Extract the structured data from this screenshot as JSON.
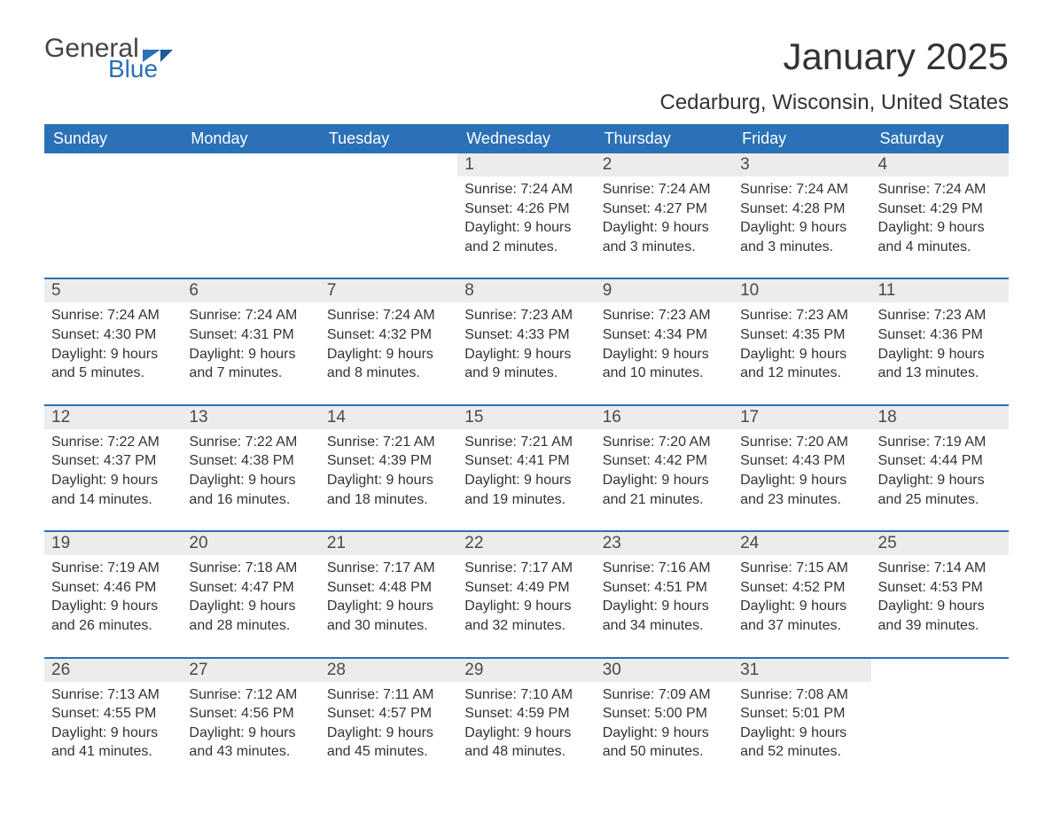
{
  "logo": {
    "word1": "General",
    "word2": "Blue",
    "accent_color": "#2a71b8"
  },
  "title": "January 2025",
  "location": "Cedarburg, Wisconsin, United States",
  "colors": {
    "header_bg": "#2a71b8",
    "header_text": "#ffffff",
    "daynum_bg": "#ececec",
    "text": "#333333",
    "separator": "#2a71b8"
  },
  "day_labels": [
    "Sunday",
    "Monday",
    "Tuesday",
    "Wednesday",
    "Thursday",
    "Friday",
    "Saturday"
  ],
  "weeks": [
    [
      null,
      null,
      null,
      {
        "n": "1",
        "sr": "Sunrise: 7:24 AM",
        "ss": "Sunset: 4:26 PM",
        "d1": "Daylight: 9 hours",
        "d2": "and 2 minutes."
      },
      {
        "n": "2",
        "sr": "Sunrise: 7:24 AM",
        "ss": "Sunset: 4:27 PM",
        "d1": "Daylight: 9 hours",
        "d2": "and 3 minutes."
      },
      {
        "n": "3",
        "sr": "Sunrise: 7:24 AM",
        "ss": "Sunset: 4:28 PM",
        "d1": "Daylight: 9 hours",
        "d2": "and 3 minutes."
      },
      {
        "n": "4",
        "sr": "Sunrise: 7:24 AM",
        "ss": "Sunset: 4:29 PM",
        "d1": "Daylight: 9 hours",
        "d2": "and 4 minutes."
      }
    ],
    [
      {
        "n": "5",
        "sr": "Sunrise: 7:24 AM",
        "ss": "Sunset: 4:30 PM",
        "d1": "Daylight: 9 hours",
        "d2": "and 5 minutes."
      },
      {
        "n": "6",
        "sr": "Sunrise: 7:24 AM",
        "ss": "Sunset: 4:31 PM",
        "d1": "Daylight: 9 hours",
        "d2": "and 7 minutes."
      },
      {
        "n": "7",
        "sr": "Sunrise: 7:24 AM",
        "ss": "Sunset: 4:32 PM",
        "d1": "Daylight: 9 hours",
        "d2": "and 8 minutes."
      },
      {
        "n": "8",
        "sr": "Sunrise: 7:23 AM",
        "ss": "Sunset: 4:33 PM",
        "d1": "Daylight: 9 hours",
        "d2": "and 9 minutes."
      },
      {
        "n": "9",
        "sr": "Sunrise: 7:23 AM",
        "ss": "Sunset: 4:34 PM",
        "d1": "Daylight: 9 hours",
        "d2": "and 10 minutes."
      },
      {
        "n": "10",
        "sr": "Sunrise: 7:23 AM",
        "ss": "Sunset: 4:35 PM",
        "d1": "Daylight: 9 hours",
        "d2": "and 12 minutes."
      },
      {
        "n": "11",
        "sr": "Sunrise: 7:23 AM",
        "ss": "Sunset: 4:36 PM",
        "d1": "Daylight: 9 hours",
        "d2": "and 13 minutes."
      }
    ],
    [
      {
        "n": "12",
        "sr": "Sunrise: 7:22 AM",
        "ss": "Sunset: 4:37 PM",
        "d1": "Daylight: 9 hours",
        "d2": "and 14 minutes."
      },
      {
        "n": "13",
        "sr": "Sunrise: 7:22 AM",
        "ss": "Sunset: 4:38 PM",
        "d1": "Daylight: 9 hours",
        "d2": "and 16 minutes."
      },
      {
        "n": "14",
        "sr": "Sunrise: 7:21 AM",
        "ss": "Sunset: 4:39 PM",
        "d1": "Daylight: 9 hours",
        "d2": "and 18 minutes."
      },
      {
        "n": "15",
        "sr": "Sunrise: 7:21 AM",
        "ss": "Sunset: 4:41 PM",
        "d1": "Daylight: 9 hours",
        "d2": "and 19 minutes."
      },
      {
        "n": "16",
        "sr": "Sunrise: 7:20 AM",
        "ss": "Sunset: 4:42 PM",
        "d1": "Daylight: 9 hours",
        "d2": "and 21 minutes."
      },
      {
        "n": "17",
        "sr": "Sunrise: 7:20 AM",
        "ss": "Sunset: 4:43 PM",
        "d1": "Daylight: 9 hours",
        "d2": "and 23 minutes."
      },
      {
        "n": "18",
        "sr": "Sunrise: 7:19 AM",
        "ss": "Sunset: 4:44 PM",
        "d1": "Daylight: 9 hours",
        "d2": "and 25 minutes."
      }
    ],
    [
      {
        "n": "19",
        "sr": "Sunrise: 7:19 AM",
        "ss": "Sunset: 4:46 PM",
        "d1": "Daylight: 9 hours",
        "d2": "and 26 minutes."
      },
      {
        "n": "20",
        "sr": "Sunrise: 7:18 AM",
        "ss": "Sunset: 4:47 PM",
        "d1": "Daylight: 9 hours",
        "d2": "and 28 minutes."
      },
      {
        "n": "21",
        "sr": "Sunrise: 7:17 AM",
        "ss": "Sunset: 4:48 PM",
        "d1": "Daylight: 9 hours",
        "d2": "and 30 minutes."
      },
      {
        "n": "22",
        "sr": "Sunrise: 7:17 AM",
        "ss": "Sunset: 4:49 PM",
        "d1": "Daylight: 9 hours",
        "d2": "and 32 minutes."
      },
      {
        "n": "23",
        "sr": "Sunrise: 7:16 AM",
        "ss": "Sunset: 4:51 PM",
        "d1": "Daylight: 9 hours",
        "d2": "and 34 minutes."
      },
      {
        "n": "24",
        "sr": "Sunrise: 7:15 AM",
        "ss": "Sunset: 4:52 PM",
        "d1": "Daylight: 9 hours",
        "d2": "and 37 minutes."
      },
      {
        "n": "25",
        "sr": "Sunrise: 7:14 AM",
        "ss": "Sunset: 4:53 PM",
        "d1": "Daylight: 9 hours",
        "d2": "and 39 minutes."
      }
    ],
    [
      {
        "n": "26",
        "sr": "Sunrise: 7:13 AM",
        "ss": "Sunset: 4:55 PM",
        "d1": "Daylight: 9 hours",
        "d2": "and 41 minutes."
      },
      {
        "n": "27",
        "sr": "Sunrise: 7:12 AM",
        "ss": "Sunset: 4:56 PM",
        "d1": "Daylight: 9 hours",
        "d2": "and 43 minutes."
      },
      {
        "n": "28",
        "sr": "Sunrise: 7:11 AM",
        "ss": "Sunset: 4:57 PM",
        "d1": "Daylight: 9 hours",
        "d2": "and 45 minutes."
      },
      {
        "n": "29",
        "sr": "Sunrise: 7:10 AM",
        "ss": "Sunset: 4:59 PM",
        "d1": "Daylight: 9 hours",
        "d2": "and 48 minutes."
      },
      {
        "n": "30",
        "sr": "Sunrise: 7:09 AM",
        "ss": "Sunset: 5:00 PM",
        "d1": "Daylight: 9 hours",
        "d2": "and 50 minutes."
      },
      {
        "n": "31",
        "sr": "Sunrise: 7:08 AM",
        "ss": "Sunset: 5:01 PM",
        "d1": "Daylight: 9 hours",
        "d2": "and 52 minutes."
      },
      null
    ]
  ]
}
